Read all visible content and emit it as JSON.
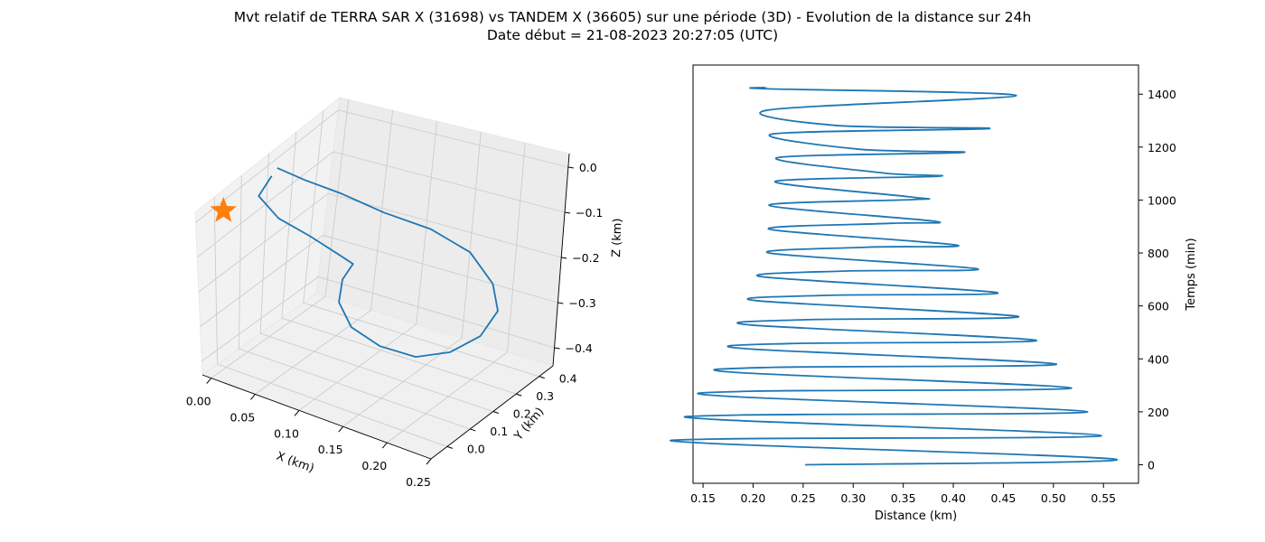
{
  "figure": {
    "title": "Mvt relatif de TERRA SAR X (31698) vs TANDEM X (36605) sur une période (3D) - Evolution de la distance sur 24h",
    "subtitle": "Date début = 21-08-2023 20:27:05 (UTC)"
  },
  "colors": {
    "series": "#1f77b4",
    "marker": "#ff7f0e",
    "pane": "#f2f2f2",
    "grid": "#cccccc"
  },
  "chart_data": [
    {
      "type": "line3d",
      "xlabel": "X (km)",
      "ylabel": "Y (km)",
      "zlabel": "Z (km)",
      "xticks": [
        "0.00",
        "0.05",
        "0.10",
        "0.15",
        "0.20",
        "0.25"
      ],
      "yticks": [
        "0.0",
        "0.1",
        "0.2",
        "0.3",
        "0.4"
      ],
      "zticks": [
        "0.0",
        "−0.1",
        "−0.2",
        "−0.3",
        "−0.4"
      ],
      "xlim": [
        -0.01,
        0.25
      ],
      "ylim": [
        -0.07,
        0.46
      ],
      "zlim": [
        -0.44,
        0.03
      ],
      "grid": true,
      "series": [
        {
          "marker": "line",
          "x": [
            0.0,
            0.02,
            0.045,
            0.08,
            0.12,
            0.16,
            0.19,
            0.205,
            0.2,
            0.18,
            0.15,
            0.115,
            0.085,
            0.065,
            0.06,
            0.068,
            0.06,
            0.04,
            0.015,
            -0.005,
            0.0
          ],
          "y": [
            0.2,
            0.24,
            0.3,
            0.35,
            0.4,
            0.42,
            0.41,
            0.38,
            0.33,
            0.28,
            0.25,
            0.23,
            0.22,
            0.24,
            0.27,
            0.28,
            0.24,
            0.2,
            0.16,
            0.15,
            0.18
          ],
          "z": [
            0.0,
            -0.04,
            -0.09,
            -0.14,
            -0.18,
            -0.22,
            -0.27,
            -0.31,
            -0.35,
            -0.38,
            -0.4,
            -0.39,
            -0.36,
            -0.32,
            -0.28,
            -0.24,
            -0.2,
            -0.15,
            -0.1,
            -0.05,
            -0.01
          ]
        },
        {
          "marker": "star",
          "x": [
            0.0
          ],
          "y": [
            0.0
          ],
          "z": [
            0.0
          ]
        }
      ]
    },
    {
      "type": "line",
      "xlabel": "Distance (km)",
      "ylabel": "Temps (min)",
      "xlim": [
        0.14,
        0.585
      ],
      "ylim": [
        -70,
        1510
      ],
      "xticks": [
        "0.15",
        "0.20",
        "0.25",
        "0.30",
        "0.35",
        "0.40",
        "0.45",
        "0.50",
        "0.55"
      ],
      "xtick_values": [
        0.15,
        0.2,
        0.25,
        0.3,
        0.35,
        0.4,
        0.45,
        0.5,
        0.55
      ],
      "yticks": [
        "0",
        "200",
        "400",
        "600",
        "800",
        "1000",
        "1200",
        "1400"
      ],
      "ytick_values": [
        0,
        200,
        400,
        600,
        800,
        1000,
        1200,
        1400
      ],
      "grid": false,
      "series": [
        {
          "x": [
            0.252,
            0.563,
            0.16,
            0.173,
            0.548,
            0.168,
            0.188,
            0.534,
            0.177,
            0.2,
            0.518,
            0.186,
            0.22,
            0.503,
            0.194,
            0.237,
            0.483,
            0.198,
            0.253,
            0.465,
            0.203,
            0.275,
            0.444,
            0.209,
            0.293,
            0.424,
            0.216,
            0.315,
            0.403,
            0.216,
            0.338,
            0.381,
            0.216,
            0.361,
            0.356,
            0.222,
            0.385,
            0.331,
            0.224,
            0.41,
            0.306,
            0.22,
            0.436,
            0.282,
            0.215,
            0.463,
            0.216,
            0.213
          ],
          "y": [
            0,
            20,
            80,
            98,
            110,
            170,
            188,
            200,
            258,
            278,
            290,
            348,
            368,
            380,
            438,
            458,
            470,
            528,
            548,
            560,
            620,
            640,
            650,
            710,
            732,
            740,
            800,
            822,
            830,
            890,
            912,
            920,
            980,
            1002,
            1012,
            1070,
            1090,
            1102,
            1160,
            1180,
            1192,
            1250,
            1270,
            1282,
            1340,
            1395,
            1420,
            1425
          ]
        }
      ]
    }
  ]
}
